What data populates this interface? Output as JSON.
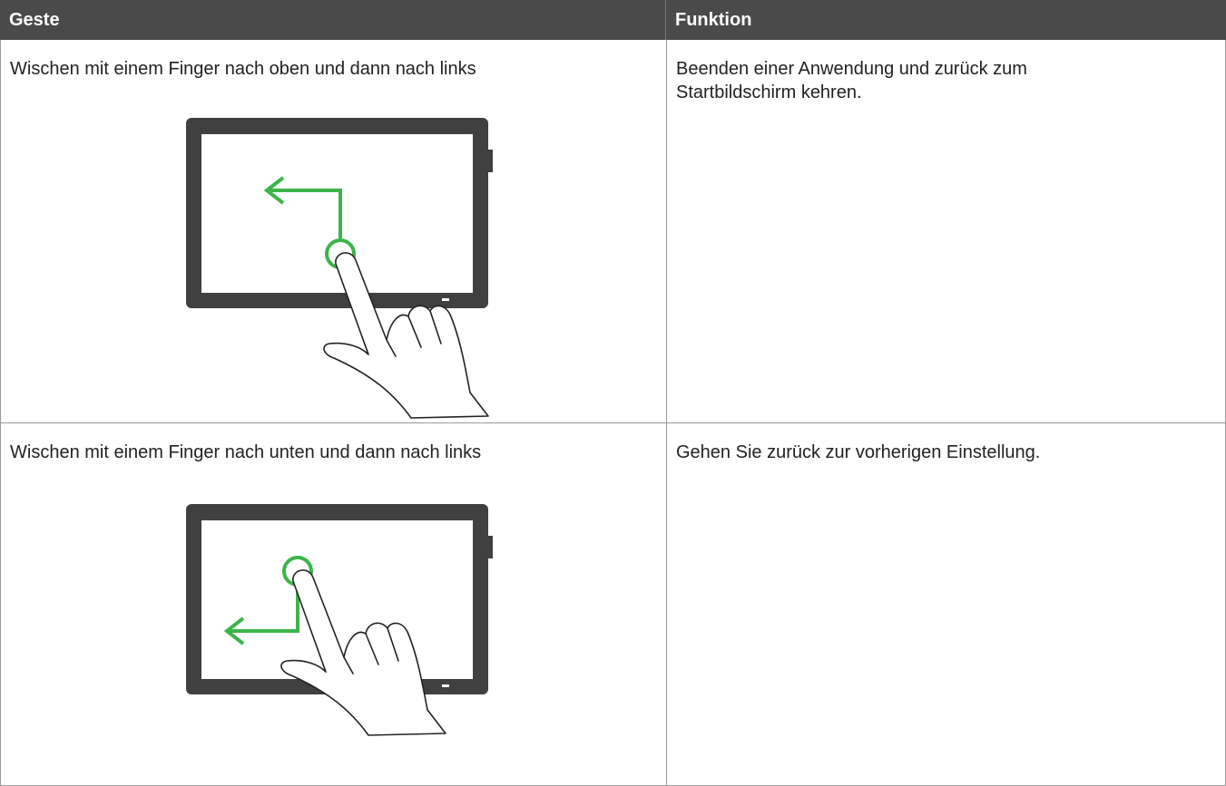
{
  "table": {
    "headers": [
      "Geste",
      "Funktion"
    ],
    "rows": [
      [
        "Wischen mit einem Finger nach oben und dann nach links",
        "Beenden einer Anwendung und zurück zum Startbildschirm kehren."
      ],
      [
        "Wischen mit einem Finger nach unten und dann nach links",
        "Gehen Sie zurück zur vorherigen Einstellung."
      ]
    ]
  }
}
